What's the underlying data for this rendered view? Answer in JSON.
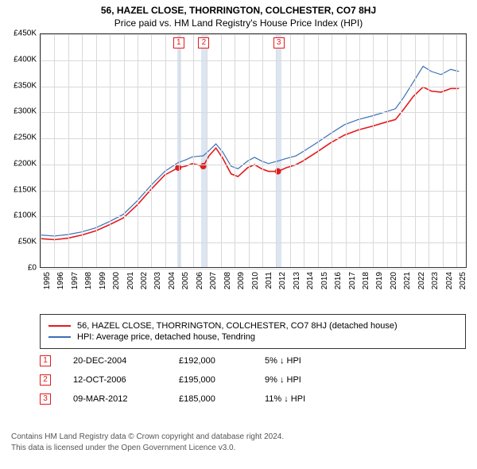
{
  "titles": {
    "line1": "56, HAZEL CLOSE, THORRINGTON, COLCHESTER, CO7 8HJ",
    "line2": "Price paid vs. HM Land Registry's House Price Index (HPI)"
  },
  "chart": {
    "type": "line",
    "xlim": [
      1995,
      2025.8
    ],
    "ylim": [
      0,
      450000
    ],
    "ytick_step": 50000,
    "yticks_labels": [
      "£0",
      "£50K",
      "£100K",
      "£150K",
      "£200K",
      "£250K",
      "£300K",
      "£350K",
      "£400K",
      "£450K"
    ],
    "xticks": [
      1995,
      1996,
      1997,
      1998,
      1999,
      2000,
      2001,
      2002,
      2003,
      2004,
      2005,
      2006,
      2007,
      2008,
      2009,
      2010,
      2011,
      2012,
      2013,
      2014,
      2015,
      2016,
      2017,
      2018,
      2019,
      2020,
      2021,
      2022,
      2023,
      2024,
      2025
    ],
    "background": "#ffffff",
    "grid_color": "#d9d9d9",
    "band_color": "#dce6f2",
    "series": [
      {
        "key": "property",
        "color": "#e31a1c",
        "label": "56, HAZEL CLOSE, THORRINGTON, COLCHESTER, CO7 8HJ (detached house)",
        "line_width": 1.6,
        "points": [
          [
            1995.0,
            55000
          ],
          [
            1996.0,
            53000
          ],
          [
            1997.0,
            56000
          ],
          [
            1998.0,
            62000
          ],
          [
            1999.0,
            70000
          ],
          [
            2000.0,
            82000
          ],
          [
            2001.0,
            95000
          ],
          [
            2002.0,
            120000
          ],
          [
            2003.0,
            150000
          ],
          [
            2004.0,
            178000
          ],
          [
            2004.97,
            192000
          ],
          [
            2005.5,
            195000
          ],
          [
            2006.0,
            200000
          ],
          [
            2006.78,
            195000
          ],
          [
            2007.2,
            215000
          ],
          [
            2007.7,
            230000
          ],
          [
            2008.2,
            210000
          ],
          [
            2008.8,
            180000
          ],
          [
            2009.3,
            175000
          ],
          [
            2010.0,
            192000
          ],
          [
            2010.5,
            198000
          ],
          [
            2011.0,
            190000
          ],
          [
            2011.5,
            185000
          ],
          [
            2012.19,
            185000
          ],
          [
            2012.8,
            192000
          ],
          [
            2013.5,
            198000
          ],
          [
            2014.0,
            205000
          ],
          [
            2015.0,
            222000
          ],
          [
            2016.0,
            240000
          ],
          [
            2017.0,
            255000
          ],
          [
            2018.0,
            265000
          ],
          [
            2019.0,
            272000
          ],
          [
            2020.0,
            280000
          ],
          [
            2020.7,
            285000
          ],
          [
            2021.3,
            305000
          ],
          [
            2022.0,
            330000
          ],
          [
            2022.7,
            348000
          ],
          [
            2023.3,
            340000
          ],
          [
            2024.0,
            338000
          ],
          [
            2024.7,
            345000
          ],
          [
            2025.3,
            345000
          ]
        ]
      },
      {
        "key": "hpi",
        "color": "#3b6fb6",
        "label": "HPI: Average price, detached house, Tendring",
        "line_width": 1.2,
        "points": [
          [
            1995.0,
            62000
          ],
          [
            1996.0,
            60000
          ],
          [
            1997.0,
            63000
          ],
          [
            1998.0,
            68000
          ],
          [
            1999.0,
            76000
          ],
          [
            2000.0,
            88000
          ],
          [
            2001.0,
            102000
          ],
          [
            2002.0,
            128000
          ],
          [
            2003.0,
            158000
          ],
          [
            2004.0,
            185000
          ],
          [
            2004.97,
            202000
          ],
          [
            2005.5,
            207000
          ],
          [
            2006.0,
            213000
          ],
          [
            2006.78,
            215000
          ],
          [
            2007.2,
            225000
          ],
          [
            2007.7,
            238000
          ],
          [
            2008.2,
            222000
          ],
          [
            2008.8,
            195000
          ],
          [
            2009.3,
            190000
          ],
          [
            2010.0,
            205000
          ],
          [
            2010.5,
            212000
          ],
          [
            2011.0,
            205000
          ],
          [
            2011.5,
            200000
          ],
          [
            2012.19,
            205000
          ],
          [
            2012.8,
            210000
          ],
          [
            2013.5,
            215000
          ],
          [
            2014.0,
            223000
          ],
          [
            2015.0,
            240000
          ],
          [
            2016.0,
            258000
          ],
          [
            2017.0,
            275000
          ],
          [
            2018.0,
            285000
          ],
          [
            2019.0,
            292000
          ],
          [
            2020.0,
            300000
          ],
          [
            2020.7,
            306000
          ],
          [
            2021.3,
            328000
          ],
          [
            2022.0,
            358000
          ],
          [
            2022.7,
            388000
          ],
          [
            2023.3,
            378000
          ],
          [
            2024.0,
            372000
          ],
          [
            2024.7,
            382000
          ],
          [
            2025.3,
            378000
          ]
        ]
      }
    ],
    "sale_markers": [
      {
        "n": "1",
        "x": 2004.97,
        "y": 192000,
        "color": "#e31a1c",
        "band": [
          2004.85,
          2005.15
        ]
      },
      {
        "n": "2",
        "x": 2006.78,
        "y": 195000,
        "color": "#e31a1c",
        "band": [
          2006.6,
          2007.0
        ]
      },
      {
        "n": "3",
        "x": 2012.19,
        "y": 185000,
        "color": "#e31a1c",
        "band": [
          2012.0,
          2012.4
        ]
      }
    ]
  },
  "legend": {
    "rows": [
      {
        "color": "#e31a1c",
        "label": "56, HAZEL CLOSE, THORRINGTON, COLCHESTER, CO7 8HJ (detached house)"
      },
      {
        "color": "#3b6fb6",
        "label": "HPI: Average price, detached house, Tendring"
      }
    ]
  },
  "sales": [
    {
      "n": "1",
      "color": "#e31a1c",
      "date": "20-DEC-2004",
      "price": "£192,000",
      "diff": "5% ↓ HPI"
    },
    {
      "n": "2",
      "color": "#e31a1c",
      "date": "12-OCT-2006",
      "price": "£195,000",
      "diff": "9% ↓ HPI"
    },
    {
      "n": "3",
      "color": "#e31a1c",
      "date": "09-MAR-2012",
      "price": "£185,000",
      "diff": "11% ↓ HPI"
    }
  ],
  "footer": {
    "line1": "Contains HM Land Registry data © Crown copyright and database right 2024.",
    "line2": "This data is licensed under the Open Government Licence v3.0."
  }
}
